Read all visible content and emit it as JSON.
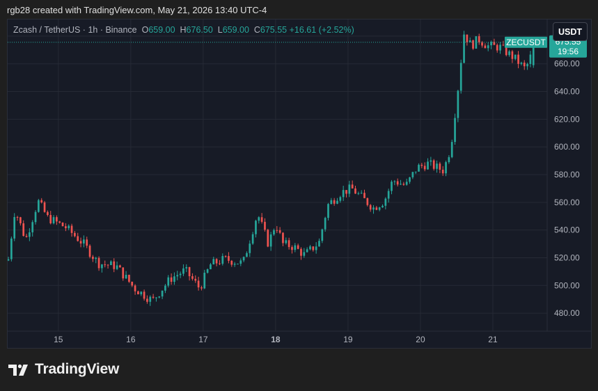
{
  "header": {
    "attribution": "rgb28 created with TradingView.com, May 21, 2026 13:40 UTC-4"
  },
  "legend": {
    "symbol": "Zcash / TetherUS · 1h · Binance",
    "open_label": "O",
    "open": "659.00",
    "high_label": "H",
    "high": "676.50",
    "low_label": "L",
    "low": "659.00",
    "close_label": "C",
    "close": "675.55",
    "change": "+16.61 (+2.52%)"
  },
  "currency_button": "USDT",
  "price_tag": {
    "symbol": "ZECUSDT",
    "price": "675.55",
    "countdown": "19:56"
  },
  "footer": {
    "brand": "TradingView"
  },
  "colors": {
    "up": "#26a69a",
    "down": "#ef5350",
    "background": "#171b26",
    "grid": "#262a35",
    "text": "#b2b5be"
  },
  "chart_data": {
    "type": "candlestick",
    "interval": "1h",
    "y_ticks": [
      480,
      500,
      520,
      540,
      560,
      580,
      600,
      620,
      640,
      660,
      680
    ],
    "y_tick_labels": [
      "480.00",
      "500.00",
      "520.00",
      "540.00",
      "560.00",
      "580.00",
      "600.00",
      "620.00",
      "640.00",
      "660.00",
      "680.00"
    ],
    "ylim": [
      467,
      692
    ],
    "x_ticks": [
      15,
      16,
      17,
      18,
      19,
      20,
      21
    ],
    "x_tick_labels": [
      "15",
      "16",
      "17",
      "18",
      "19",
      "20",
      "21"
    ],
    "xlim": [
      14.3,
      21.75
    ],
    "bold_x_tick": "18",
    "last_price": 675.55,
    "grid": true,
    "waypoints": [
      [
        14.31,
        519
      ],
      [
        14.4,
        555
      ],
      [
        14.55,
        533
      ],
      [
        14.72,
        561
      ],
      [
        14.85,
        549
      ],
      [
        15.1,
        542
      ],
      [
        15.35,
        530
      ],
      [
        15.55,
        516
      ],
      [
        15.8,
        514
      ],
      [
        16.05,
        498
      ],
      [
        16.3,
        489
      ],
      [
        16.55,
        505
      ],
      [
        16.75,
        511
      ],
      [
        16.95,
        498
      ],
      [
        17.1,
        515
      ],
      [
        17.3,
        519
      ],
      [
        17.55,
        516
      ],
      [
        17.75,
        552
      ],
      [
        17.9,
        530
      ],
      [
        18.0,
        545
      ],
      [
        18.1,
        530
      ],
      [
        18.25,
        528
      ],
      [
        18.4,
        522
      ],
      [
        18.6,
        531
      ],
      [
        18.72,
        558
      ],
      [
        18.9,
        567
      ],
      [
        19.05,
        570
      ],
      [
        19.2,
        563
      ],
      [
        19.35,
        556
      ],
      [
        19.5,
        561
      ],
      [
        19.62,
        576
      ],
      [
        19.8,
        572
      ],
      [
        19.95,
        585
      ],
      [
        20.1,
        588
      ],
      [
        20.32,
        583
      ],
      [
        20.42,
        600
      ],
      [
        20.52,
        643
      ],
      [
        20.6,
        682
      ],
      [
        20.7,
        673
      ],
      [
        20.8,
        678
      ],
      [
        20.92,
        673
      ],
      [
        21.1,
        672
      ],
      [
        21.3,
        664
      ],
      [
        21.45,
        656
      ],
      [
        21.6,
        675.55
      ]
    ]
  }
}
